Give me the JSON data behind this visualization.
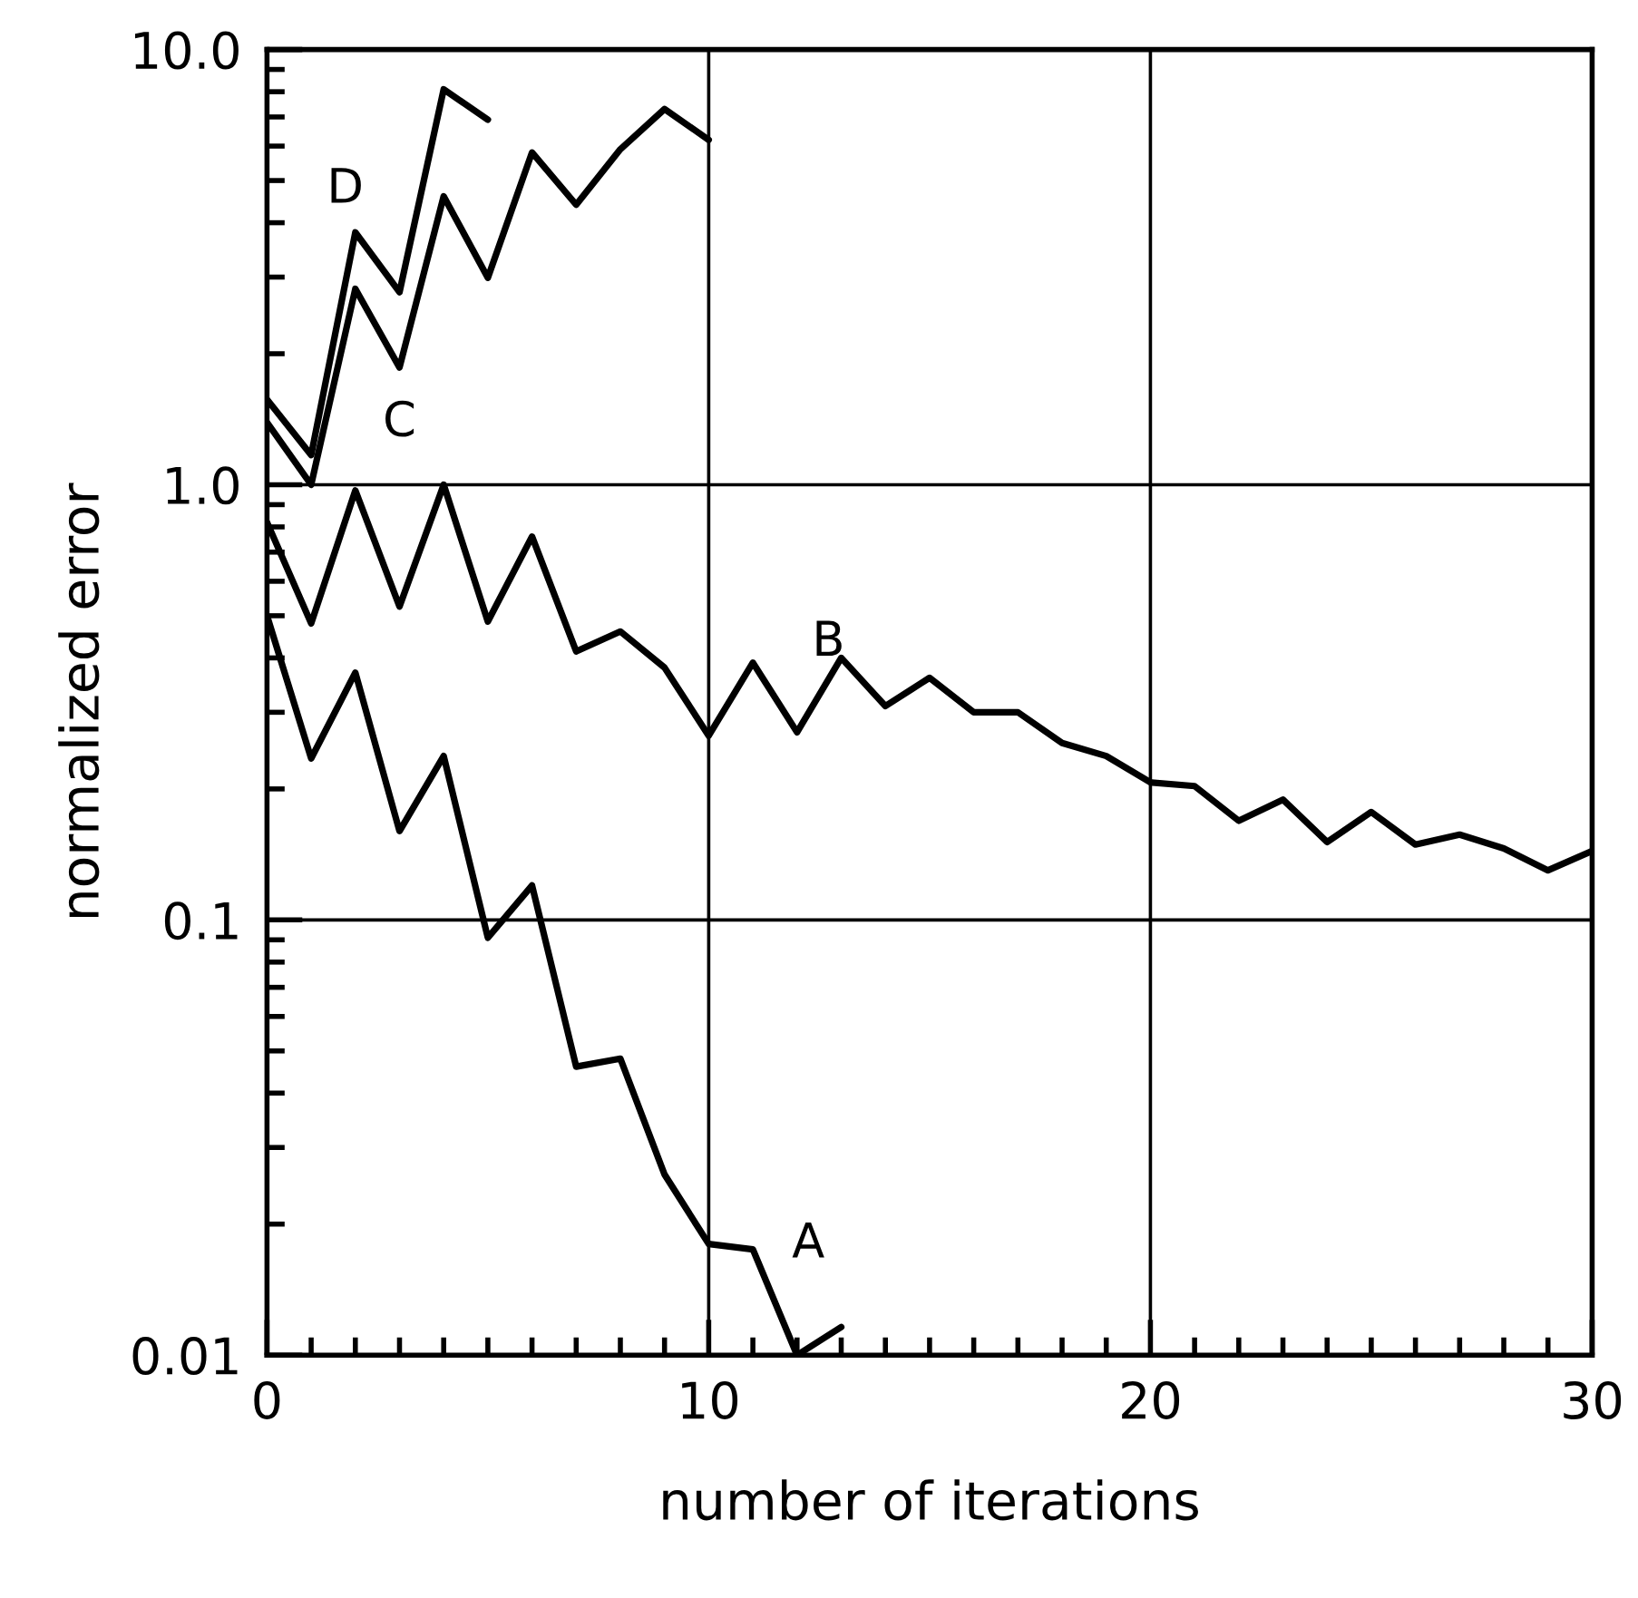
{
  "chart_data": {
    "type": "line",
    "xlabel": "number of iterations",
    "ylabel": "normalized error",
    "log": "y",
    "grid": true,
    "marker": "none",
    "line_style": "solid",
    "xlim": [
      0,
      30
    ],
    "xticks": [
      0,
      10,
      20,
      30
    ],
    "ylim": [
      0.01,
      10
    ],
    "yticks": [
      {
        "value": 0.01,
        "label": "0.01"
      },
      {
        "value": 0.1,
        "label": "0.1"
      },
      {
        "value": 1,
        "label": "1.0"
      },
      {
        "value": 10,
        "label": "10.0"
      }
    ],
    "series": [
      {
        "color": "#000000",
        "x": [
          0,
          1,
          2,
          3,
          4,
          5,
          6,
          7,
          8,
          9,
          10,
          11,
          12,
          13
        ],
        "values": [
          0.5,
          0.235,
          0.37,
          0.16,
          0.238,
          0.091,
          0.12,
          0.046,
          0.048,
          0.026,
          0.018,
          0.0175,
          0.01,
          0.0116
        ]
      },
      {
        "color": "#000000",
        "x": [
          0,
          1,
          2,
          3,
          4,
          5,
          6,
          7,
          8,
          9,
          10,
          11,
          12,
          13,
          14,
          15,
          16,
          17,
          18,
          19,
          20,
          21,
          22,
          23,
          24,
          25,
          26,
          27,
          28,
          29,
          30
        ],
        "values": [
          0.82,
          0.48,
          0.97,
          0.525,
          1.0,
          0.485,
          0.76,
          0.414,
          0.46,
          0.38,
          0.265,
          0.39,
          0.27,
          0.4,
          0.31,
          0.36,
          0.3,
          0.3,
          0.255,
          0.238,
          0.207,
          0.203,
          0.169,
          0.189,
          0.151,
          0.177,
          0.149,
          0.157,
          0.146,
          0.13,
          0.144
        ]
      },
      {
        "color": "#000000",
        "x": [
          0,
          1,
          2,
          3,
          4,
          5,
          6,
          7,
          8,
          9,
          10
        ],
        "values": [
          1.39,
          1.0,
          2.82,
          1.86,
          4.6,
          2.99,
          5.8,
          4.4,
          5.9,
          7.3,
          6.2
        ]
      },
      {
        "color": "#000000",
        "x": [
          0,
          1,
          2,
          3,
          4,
          5
        ],
        "values": [
          1.57,
          1.17,
          3.8,
          2.77,
          8.1,
          6.9
        ]
      }
    ],
    "annotations": [
      {
        "text": "A",
        "x": 11,
        "y": 0.0175
      },
      {
        "text": "B",
        "x": 11,
        "y": 0.39
      },
      {
        "text": "C",
        "x": 3,
        "y": 1.86
      },
      {
        "text": "D",
        "x": 2,
        "y": 3.8
      }
    ]
  }
}
